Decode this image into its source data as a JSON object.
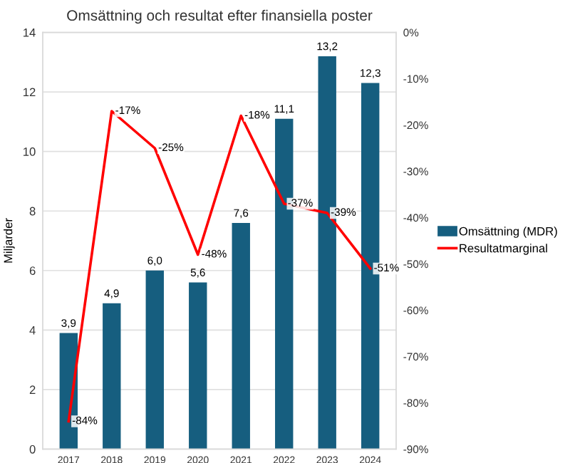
{
  "chart_data": {
    "type": "bar",
    "title": "Omsättning och resultat efter finansiella poster",
    "ylabel": "Miljarder",
    "categories": [
      "2017",
      "2018",
      "2019",
      "2020",
      "2021",
      "2022",
      "2023",
      "2024"
    ],
    "series": [
      {
        "name": "Omsättning (MDR)",
        "color": "#165e7f",
        "values": [
          3.9,
          4.9,
          6.0,
          5.6,
          7.6,
          11.1,
          13.2,
          12.3
        ],
        "value_labels": [
          "3,9",
          "4,9",
          "6,0",
          "5,6",
          "7,6",
          "11,1",
          "13,2",
          "12,3"
        ]
      },
      {
        "name": "Resultatmarginal",
        "type": "line",
        "axis": "y2",
        "color": "#ff0000",
        "values": [
          -84,
          -17,
          -25,
          -48,
          -18,
          -37,
          -39,
          -51
        ],
        "value_labels": [
          "-84%",
          "-17%",
          "-25%",
          "-48%",
          "-18%",
          "-37%",
          "-39%",
          "-51%"
        ]
      }
    ],
    "ylim": [
      0,
      14
    ],
    "yticks": [
      0,
      2,
      4,
      6,
      8,
      10,
      12,
      14
    ],
    "y2lim": [
      -90,
      0
    ],
    "y2ticks": [
      {
        "value": -90,
        "label": "-90%"
      },
      {
        "value": -80,
        "label": "-80%"
      },
      {
        "value": -70,
        "label": "-70%"
      },
      {
        "value": -60,
        "label": "-60%"
      },
      {
        "value": -50,
        "label": "-50%"
      },
      {
        "value": -40,
        "label": "-40%"
      },
      {
        "value": -30,
        "label": "-30%"
      },
      {
        "value": -20,
        "label": "-20%"
      },
      {
        "value": -10,
        "label": "-10%"
      },
      {
        "value": 0,
        "label": "0%"
      }
    ],
    "grid": "y",
    "legend": "right",
    "marker": "none",
    "line_style": "solid"
  }
}
